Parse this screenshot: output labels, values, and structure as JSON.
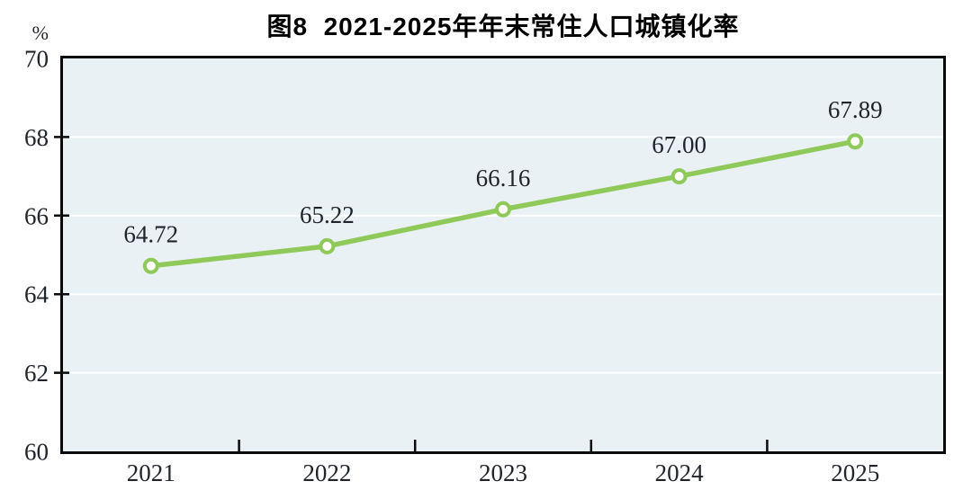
{
  "chart": {
    "title": "图8  2021-2025年年末常住人口城镇化率",
    "unit": "%"
  },
  "chart_data": {
    "type": "line",
    "title": "图8  2021-2025年年末常住人口城镇化率",
    "categories": [
      "2021",
      "2022",
      "2023",
      "2024",
      "2025"
    ],
    "values": [
      64.72,
      65.22,
      66.16,
      67.0,
      67.89
    ],
    "point_labels": [
      "64.72",
      "65.22",
      "66.16",
      "67.00",
      "67.89"
    ],
    "xlabel": "",
    "ylabel": "%",
    "ylim": [
      60,
      70
    ],
    "yticks": [
      60,
      62,
      64,
      66,
      68,
      70
    ],
    "grid": true,
    "legend": "none",
    "colors": {
      "line": "#8fc95a",
      "marker_fill": "#ffffff",
      "plot_background": "#e9f1f5",
      "gridline": "#ffffff",
      "frame": "#0a0a0a",
      "text": "#20242b"
    }
  }
}
